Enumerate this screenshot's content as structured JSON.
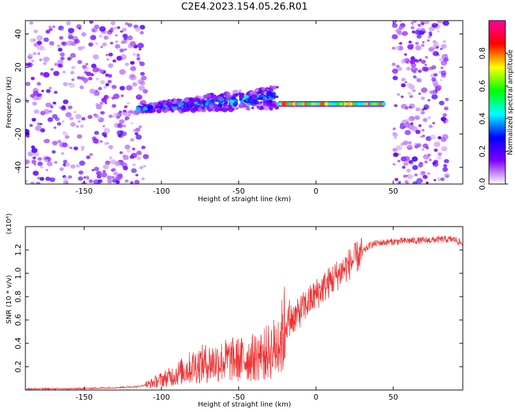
{
  "title": "C2E4.2023.154.05.26.R01",
  "chart_data": [
    {
      "type": "heatmap",
      "title": "C2E4.2023.154.05.26.R01",
      "xlabel": "Height of straight line (km)",
      "ylabel": "Frequency (Hz)",
      "xlim": [
        -188,
        95
      ],
      "ylim": [
        -50,
        48
      ],
      "x_ticks": [
        -150,
        -100,
        -50,
        0,
        50
      ],
      "y_ticks": [
        -40,
        -20,
        0,
        20,
        40
      ],
      "colorbar": {
        "label": "Normalized spectral amplitude",
        "range": [
          0,
          1
        ],
        "ticks": [
          "0.0",
          "0.2",
          "0.4",
          "0.6",
          "0.8"
        ],
        "colormap": [
          "#ffffff",
          "#8000ff",
          "#0000ff",
          "#00ffff",
          "#00ff00",
          "#ffff00",
          "#ff0000",
          "#ff00a0"
        ]
      },
      "features": [
        {
          "name": "noise_region_left",
          "x": [
            -188,
            -110
          ],
          "y": [
            -50,
            48
          ],
          "amplitude": 0.15
        },
        {
          "name": "signal_band",
          "x": [
            -115,
            -25
          ],
          "y_center": [
            -5,
            2
          ],
          "amplitude": 0.35
        },
        {
          "name": "signal_line",
          "x": [
            -25,
            45
          ],
          "y_center": -2,
          "amplitude": 0.85
        },
        {
          "name": "noise_region_right",
          "x": [
            50,
            85
          ],
          "y": [
            -50,
            48
          ],
          "amplitude": 0.15
        }
      ]
    },
    {
      "type": "line",
      "xlabel": "Height of straight line (km)",
      "ylabel": "SNR (10 * v/v)",
      "y_scale_label": "(x10⁴)",
      "xlim": [
        -188,
        95
      ],
      "ylim": [
        0,
        1.4
      ],
      "x_ticks": [
        -150,
        -100,
        -50,
        0,
        50
      ],
      "y_ticks": [
        "0.2",
        "0.4",
        "0.6",
        "0.8",
        "1.0",
        "1.2"
      ],
      "color": "#ee3333",
      "series": [
        {
          "x": [
            -188,
            -160,
            -130,
            -115,
            -108,
            -100,
            -95,
            -90,
            -85,
            -80,
            -75,
            -70,
            -65,
            -60,
            -55,
            -50,
            -45,
            -40,
            -35,
            -30,
            -25,
            -22,
            -20,
            -17,
            -15,
            -12,
            -10,
            -5,
            0,
            5,
            10,
            15,
            20,
            25,
            30,
            35,
            40,
            50,
            60,
            70,
            80,
            90,
            95
          ],
          "y": [
            0.01,
            0.01,
            0.02,
            0.03,
            0.05,
            0.09,
            0.11,
            0.14,
            0.17,
            0.2,
            0.22,
            0.23,
            0.24,
            0.25,
            0.26,
            0.26,
            0.27,
            0.28,
            0.3,
            0.33,
            0.38,
            0.45,
            0.55,
            0.6,
            0.62,
            0.64,
            0.68,
            0.75,
            0.82,
            0.88,
            0.94,
            1.0,
            1.06,
            1.12,
            1.18,
            1.24,
            1.26,
            1.27,
            1.28,
            1.28,
            1.29,
            1.29,
            1.25
          ]
        }
      ]
    }
  ]
}
